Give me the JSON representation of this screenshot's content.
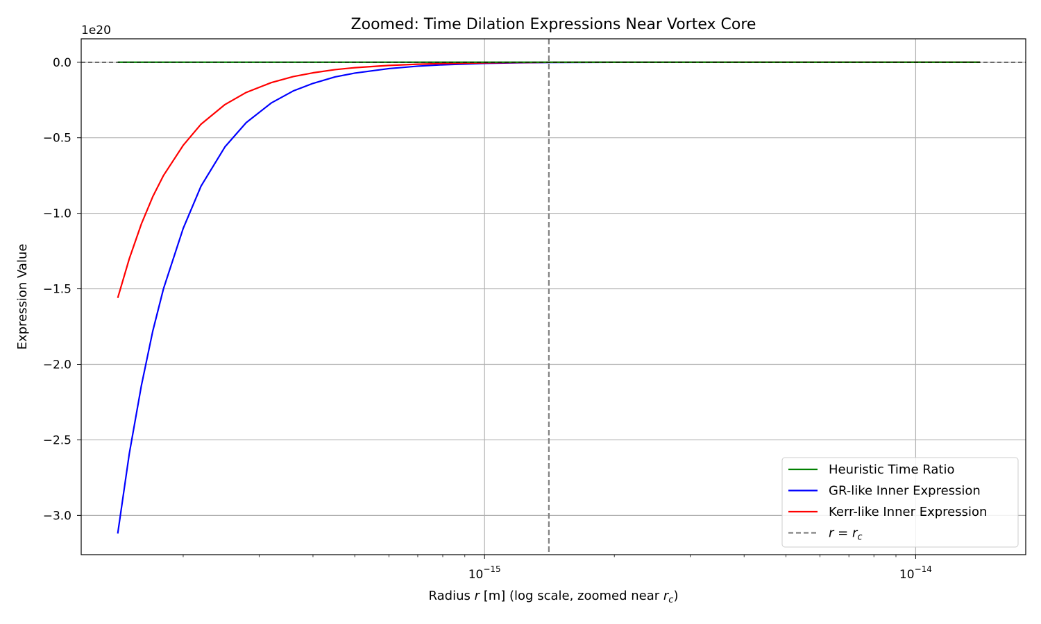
{
  "chart_data": {
    "type": "line",
    "title": "Zoomed: Time Dilation Expressions Near Vortex Core",
    "xlabel": "Radius r [m] (log scale, zoomed near r_c)",
    "ylabel": "Expression Value",
    "x_scale": "log",
    "xlim": [
      1.16e-16,
      1.8e-14
    ],
    "ylim": [
      -3.26e+20,
      1.55e+19
    ],
    "y_offset_text": "1e20",
    "x_ticks": [
      {
        "value": 1e-15,
        "base": "10",
        "exp": "−15"
      },
      {
        "value": 1e-14,
        "base": "10",
        "exp": "−14"
      }
    ],
    "y_ticks": [
      {
        "value": 0.0,
        "label": "0.0"
      },
      {
        "value": -5e+19,
        "label": "−0.5"
      },
      {
        "value": -1e+20,
        "label": "−1.0"
      },
      {
        "value": -1.5e+20,
        "label": "−1.5"
      },
      {
        "value": -2e+20,
        "label": "−2.0"
      },
      {
        "value": -2.5e+20,
        "label": "−2.5"
      },
      {
        "value": -3e+20,
        "label": "−3.0"
      }
    ],
    "grid": true,
    "legend_position": "lower right",
    "r_c": 1.41e-15,
    "series": [
      {
        "name": "Heuristic Time Ratio",
        "color": "#008000",
        "x": [
          1.41e-16,
          1.41e-14
        ],
        "y": [
          0,
          0
        ]
      },
      {
        "name": "GR-like Inner Expression",
        "color": "#0000ff",
        "x": [
          1.41e-16,
          1.5e-16,
          1.6e-16,
          1.7e-16,
          1.8e-16,
          2e-16,
          2.2e-16,
          2.5e-16,
          2.8e-16,
          3.2e-16,
          3.6e-16,
          4e-16,
          4.5e-16,
          5e-16,
          6e-16,
          7e-16,
          8e-16,
          1e-15,
          1.2e-15,
          1.41e-15,
          2e-15,
          4e-15,
          8e-15,
          1.41e-14
        ],
        "y": [
          -3.12e+20,
          -2.59e+20,
          -2.14e+20,
          -1.78e+20,
          -1.5e+20,
          -1.1e+20,
          -8.2e+19,
          -5.6e+19,
          -4e+19,
          -2.7e+19,
          -1.9e+19,
          -1.4e+19,
          -9.7e+18,
          -7.2e+18,
          -4.2e+18,
          -2.6e+18,
          -1.7e+18,
          -7.6e+17,
          -3.6e+17,
          -1.8e+17,
          -6e+16,
          -1e+16,
          0,
          0
        ]
      },
      {
        "name": "Kerr-like Inner Expression",
        "color": "#ff0000",
        "x": [
          1.41e-16,
          1.5e-16,
          1.6e-16,
          1.7e-16,
          1.8e-16,
          2e-16,
          2.2e-16,
          2.5e-16,
          2.8e-16,
          3.2e-16,
          3.6e-16,
          4e-16,
          4.5e-16,
          5e-16,
          6e-16,
          7e-16,
          8e-16,
          1e-15,
          1.2e-15,
          1.41e-15,
          2e-15,
          4e-15,
          8e-15,
          1.41e-14
        ],
        "y": [
          -1.56e+20,
          -1.3e+20,
          -1.07e+20,
          -8.9e+19,
          -7.5e+19,
          -5.5e+19,
          -4.1e+19,
          -2.8e+19,
          -2e+19,
          -1.35e+19,
          -9.5e+18,
          -7e+18,
          -4.9e+18,
          -3.6e+18,
          -2.1e+18,
          -1.3e+18,
          -8.5e+17,
          -3.8e+17,
          -1.8e+17,
          -9e+16,
          -3e+16,
          0,
          0,
          0
        ]
      }
    ],
    "reference_lines": [
      {
        "orientation": "horizontal",
        "value": 0,
        "style": "dashed",
        "color": "#000000"
      },
      {
        "orientation": "vertical",
        "value": 1.41e-15,
        "style": "dashed",
        "color": "#808080",
        "legend_label": "r = r_c"
      }
    ],
    "legend_entries": [
      {
        "label": "Heuristic Time Ratio",
        "color": "#008000",
        "style": "solid"
      },
      {
        "label": "GR-like Inner Expression",
        "color": "#0000ff",
        "style": "solid"
      },
      {
        "label": "Kerr-like Inner Expression",
        "color": "#ff0000",
        "style": "solid"
      },
      {
        "label": "r = r_c",
        "color": "#808080",
        "style": "dashed"
      }
    ]
  }
}
